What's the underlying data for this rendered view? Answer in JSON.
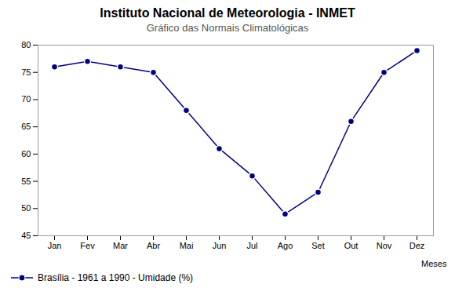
{
  "chart_data": {
    "type": "line",
    "title": "Instituto Nacional de Meteorologia - INMET",
    "subtitle": "Gráfico das Normais Climatológicas",
    "xlabel": "Meses",
    "categories": [
      "Jan",
      "Fev",
      "Mar",
      "Abr",
      "Mai",
      "Jun",
      "Jul",
      "Ago",
      "Set",
      "Out",
      "Nov",
      "Dez"
    ],
    "series": [
      {
        "name": "Brasília - 1961 a 1990 - Umidade (%)",
        "color": "#000080",
        "values": [
          76,
          77,
          76,
          75,
          68,
          61,
          56,
          49,
          53,
          66,
          75,
          79
        ]
      }
    ],
    "ylim": [
      45,
      80
    ],
    "yticks": [
      45,
      50,
      55,
      60,
      65,
      70,
      75,
      80
    ],
    "grid": false,
    "legend": "bottom",
    "marker": "circle"
  }
}
